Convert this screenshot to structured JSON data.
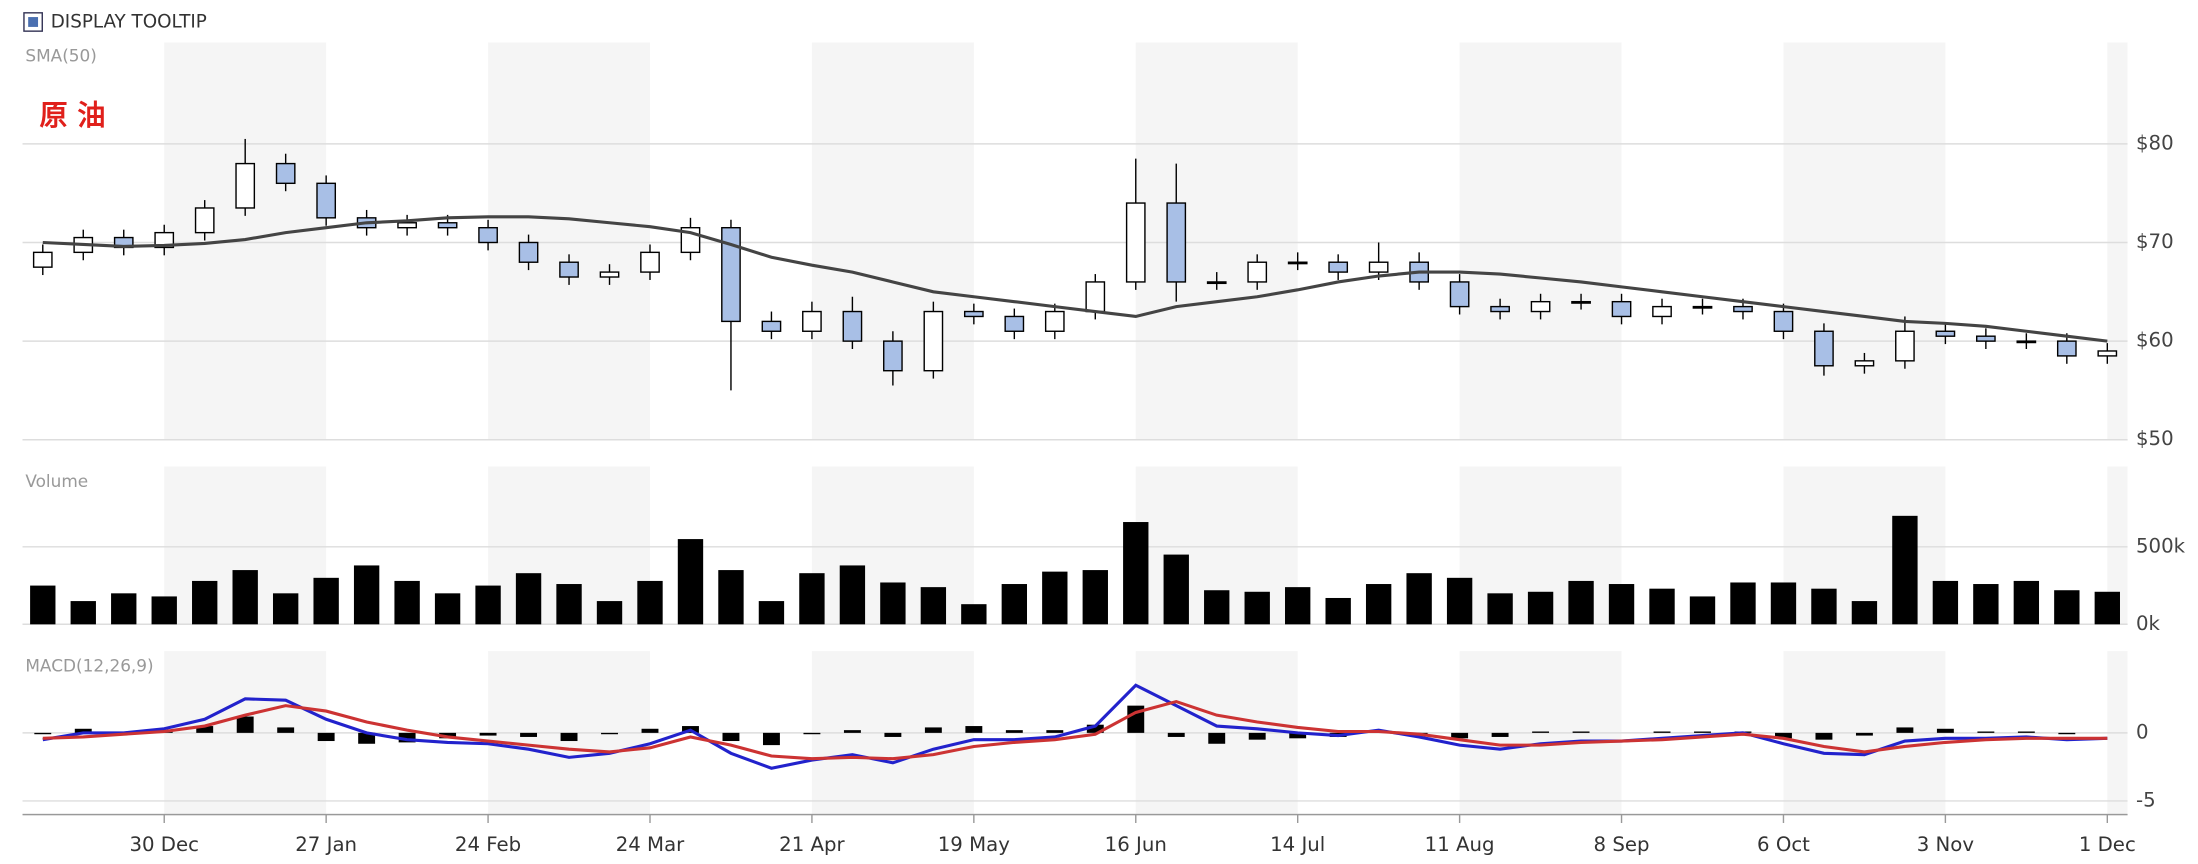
{
  "tooltip_toggle": "DISPLAY TOOLTIP",
  "chart_data": [
    {
      "type": "candlestick",
      "title": "原 油",
      "up_color": "#ffffff",
      "down_color": "#a8bfe6",
      "open": [
        67.5,
        69,
        70.5,
        69.5,
        71,
        73.5,
        78,
        76,
        72.5,
        71.5,
        72,
        71.5,
        70,
        68,
        66.5,
        67,
        69,
        71.5,
        62,
        61,
        63,
        60,
        57,
        63,
        62.5,
        61,
        63,
        66,
        74,
        66,
        66,
        68,
        68,
        67,
        68,
        66,
        63.5,
        63,
        64,
        64,
        62.5,
        63.5,
        63.5,
        63,
        61,
        57.5,
        58,
        61,
        60.5,
        60,
        60,
        58.5
      ],
      "high": [
        69.8,
        71.3,
        71.3,
        71.8,
        74.3,
        80.5,
        79,
        76.8,
        73.3,
        72.8,
        72.8,
        72.3,
        70.8,
        68.8,
        67.8,
        69.8,
        72.5,
        72.3,
        63,
        64,
        64.5,
        61,
        64,
        63.8,
        63.3,
        63.8,
        66.8,
        78.5,
        78,
        67,
        68.8,
        69,
        68.8,
        70,
        69,
        66.8,
        64.3,
        64.8,
        64.8,
        64.8,
        64.3,
        64.3,
        64.3,
        63.8,
        61.8,
        58.8,
        62.5,
        61.8,
        61.3,
        60.8,
        60.8,
        59.8
      ],
      "low": [
        66.7,
        68.2,
        68.7,
        68.7,
        70.2,
        72.7,
        75.2,
        71.7,
        70.7,
        70.7,
        70.7,
        69.2,
        67.2,
        65.7,
        65.7,
        66.2,
        68.2,
        55,
        60.2,
        60.2,
        59.2,
        55.5,
        56.2,
        61.7,
        60.2,
        60.2,
        62.2,
        65.2,
        64,
        65.2,
        65.2,
        67.2,
        66.2,
        66.2,
        65.2,
        62.7,
        62.2,
        62.2,
        63.2,
        61.7,
        61.7,
        62.7,
        62.2,
        60.2,
        56.5,
        56.7,
        57.2,
        59.7,
        59.2,
        59.2,
        57.7,
        57.7
      ],
      "close": [
        69,
        70.5,
        69.5,
        71,
        73.5,
        78,
        76,
        72.5,
        71.5,
        72,
        71.5,
        70,
        68,
        66.5,
        67,
        69,
        71.5,
        62,
        61,
        63,
        60,
        57,
        63,
        62.5,
        61,
        63,
        66,
        74,
        66,
        66,
        68,
        68,
        67,
        68,
        66,
        63.5,
        63,
        64,
        64,
        62.5,
        63.5,
        63.5,
        63,
        61,
        57.5,
        58,
        61,
        60.5,
        60,
        60,
        58.5,
        59
      ],
      "series": [
        {
          "name": "SMA(50)",
          "color": "#444444",
          "values": [
            70,
            69.8,
            69.6,
            69.7,
            69.9,
            70.3,
            71,
            71.5,
            72,
            72.2,
            72.5,
            72.6,
            72.6,
            72.4,
            72,
            71.6,
            71,
            69.8,
            68.5,
            67.7,
            67,
            66,
            65,
            64.5,
            64,
            63.5,
            63,
            62.5,
            63.5,
            64,
            64.5,
            65.2,
            66,
            66.6,
            67,
            67,
            66.8,
            66.4,
            66,
            65.5,
            65,
            64.5,
            64,
            63.5,
            63,
            62.5,
            62,
            61.8,
            61.5,
            61,
            60.5,
            60
          ]
        }
      ],
      "ylim": [
        50,
        90
      ],
      "yticks": [
        {
          "value": 50,
          "label": "$50"
        },
        {
          "value": 60,
          "label": "$60"
        },
        {
          "value": 70,
          "label": "$70"
        },
        {
          "value": 80,
          "label": "$80"
        }
      ],
      "grid": true
    },
    {
      "type": "bar",
      "title": "Volume",
      "color": "#000000",
      "values": [
        250000,
        150000,
        200000,
        180000,
        280000,
        350000,
        200000,
        300000,
        380000,
        280000,
        200000,
        250000,
        330000,
        260000,
        150000,
        280000,
        550000,
        350000,
        150000,
        330000,
        380000,
        270000,
        240000,
        130000,
        260000,
        340000,
        350000,
        660000,
        450000,
        220000,
        210000,
        240000,
        170000,
        260000,
        330000,
        300000,
        200000,
        210000,
        280000,
        260000,
        230000,
        180000,
        270000,
        270000,
        230000,
        150000,
        700000,
        280000,
        260000,
        280000,
        220000,
        210000
      ],
      "ylim": [
        0,
        1000000
      ],
      "yticks": [
        {
          "value": 0,
          "label": "0k"
        },
        {
          "value": 500000,
          "label": "500k"
        }
      ],
      "grid": true
    },
    {
      "type": "macd",
      "title": "MACD(12,26,9)",
      "categories": [
        null,
        null,
        null,
        "30 Dec",
        null,
        null,
        null,
        "27 Jan",
        null,
        null,
        null,
        "24 Feb",
        null,
        null,
        null,
        "24 Mar",
        null,
        null,
        null,
        "21 Apr",
        null,
        null,
        null,
        "19 May",
        null,
        null,
        null,
        "16 Jun",
        null,
        null,
        null,
        "14 Jul",
        null,
        null,
        null,
        "11 Aug",
        null,
        null,
        null,
        "8 Sep",
        null,
        null,
        null,
        "6 Oct",
        null,
        null,
        null,
        "3 Nov",
        null,
        null,
        null,
        "1 Dec"
      ],
      "macd": {
        "color": "#2222cc",
        "values": [
          -0.5,
          0,
          0,
          0.3,
          1.0,
          2.5,
          2.4,
          1.0,
          0,
          -0.5,
          -0.7,
          -0.8,
          -1.2,
          -1.8,
          -1.5,
          -0.8,
          0.2,
          -1.5,
          -2.6,
          -2.0,
          -1.6,
          -2.2,
          -1.2,
          -0.5,
          -0.5,
          -0.3,
          0.5,
          3.5,
          2.0,
          0.5,
          0.3,
          0,
          -0.2,
          0.2,
          -0.3,
          -0.9,
          -1.2,
          -0.8,
          -0.6,
          -0.6,
          -0.4,
          -0.2,
          0,
          -0.8,
          -1.5,
          -1.6,
          -0.6,
          -0.4,
          -0.4,
          -0.3,
          -0.5,
          -0.4
        ]
      },
      "signal": {
        "color": "#cc3333",
        "values": [
          -0.4,
          -0.3,
          -0.1,
          0.1,
          0.5,
          1.3,
          2.0,
          1.6,
          0.8,
          0.2,
          -0.3,
          -0.6,
          -0.9,
          -1.2,
          -1.4,
          -1.1,
          -0.3,
          -0.9,
          -1.7,
          -1.9,
          -1.8,
          -1.9,
          -1.6,
          -1.0,
          -0.7,
          -0.5,
          -0.1,
          1.5,
          2.3,
          1.3,
          0.8,
          0.4,
          0.1,
          0.1,
          -0.1,
          -0.5,
          -0.9,
          -0.9,
          -0.7,
          -0.6,
          -0.5,
          -0.3,
          -0.1,
          -0.4,
          -1.0,
          -1.4,
          -1.0,
          -0.7,
          -0.5,
          -0.4,
          -0.4,
          -0.4
        ]
      },
      "histogram": {
        "color": "#000000",
        "values": [
          -0.1,
          0.3,
          0.1,
          0.2,
          0.5,
          1.2,
          0.4,
          -0.6,
          -0.8,
          -0.7,
          -0.4,
          -0.2,
          -0.3,
          -0.6,
          -0.1,
          0.3,
          0.5,
          -0.6,
          -0.9,
          -0.1,
          0.2,
          -0.3,
          0.4,
          0.5,
          0.2,
          0.2,
          0.6,
          2.0,
          -0.3,
          -0.8,
          -0.5,
          -0.4,
          -0.3,
          0.1,
          -0.2,
          -0.4,
          -0.3,
          0.1,
          0.1,
          0,
          0.1,
          0.1,
          0.1,
          -0.4,
          -0.5,
          -0.2,
          0.4,
          0.3,
          0.1,
          0.1,
          -0.1,
          0
        ]
      },
      "ylim": [
        -6,
        5.8
      ],
      "yticks": [
        -5,
        0
      ],
      "grid": true
    }
  ]
}
